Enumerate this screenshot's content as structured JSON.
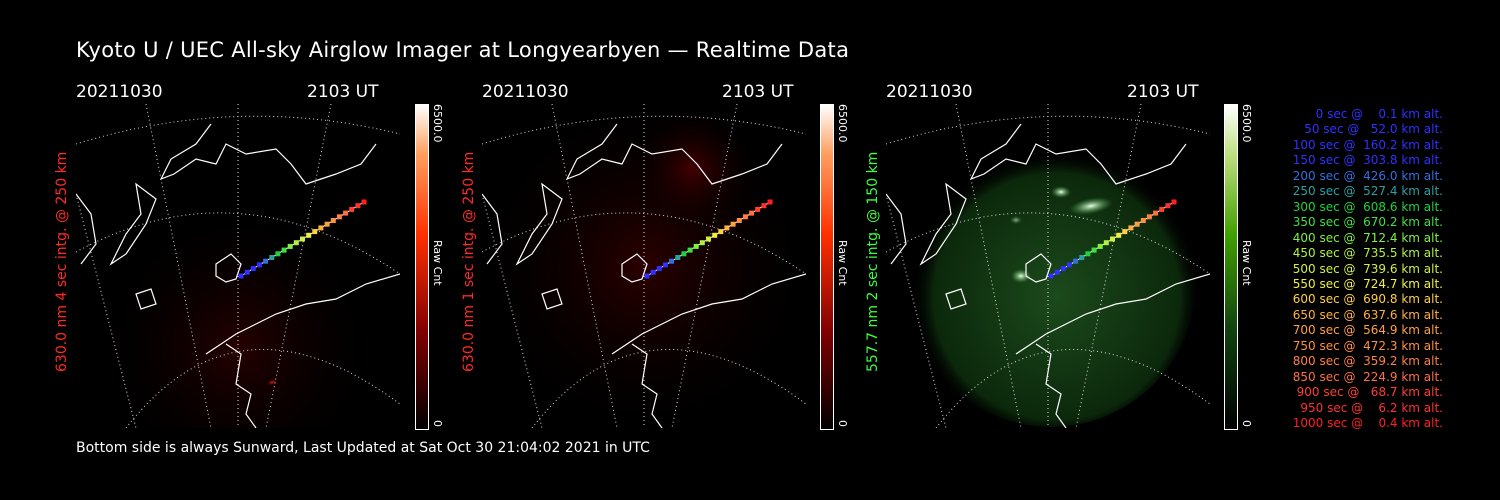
{
  "title": "Kyoto U / UEC All-sky Airglow Imager at Longyearbyen — Realtime Data",
  "footer": "Bottom side is always Sunward, Last Updated at Sat Oct 30 21:04:02 2021 in UTC",
  "panels": [
    {
      "date": "20211030",
      "time": "2103 UT",
      "ylabel": "630.0 nm 4 sec intg. @ 250 km",
      "cb_max": "6500.0",
      "cb_unit": "Raw Cnt",
      "cb_min": "0",
      "color": "#ff2a2a"
    },
    {
      "date": "20211030",
      "time": "2103 UT",
      "ylabel": "630.0 nm 1 sec intg. @ 250 km",
      "cb_max": "6500.0",
      "cb_unit": "Raw Cnt",
      "cb_min": "0",
      "color": "#ff2a2a"
    },
    {
      "date": "20211030",
      "time": "2103 UT",
      "ylabel": "557.7 nm 2 sec intg. @ 150 km",
      "cb_max": "6500.0",
      "cb_unit": "Raw Cnt",
      "cb_min": "0",
      "color": "#3cff3c"
    }
  ],
  "legend": [
    {
      "text": "   0 sec @    0.1 km alt.",
      "color": "#3030ff"
    },
    {
      "text": "  50 sec @   52.0 km alt.",
      "color": "#3030ff"
    },
    {
      "text": " 100 sec @  160.2 km alt.",
      "color": "#3030ff"
    },
    {
      "text": " 150 sec @  303.8 km alt.",
      "color": "#3030ff"
    },
    {
      "text": " 200 sec @  426.0 km alt.",
      "color": "#3070e0"
    },
    {
      "text": " 250 sec @  527.4 km alt.",
      "color": "#2aa0a0"
    },
    {
      "text": " 300 sec @  608.6 km alt.",
      "color": "#20d040"
    },
    {
      "text": " 350 sec @  670.2 km alt.",
      "color": "#40e040"
    },
    {
      "text": " 400 sec @  712.4 km alt.",
      "color": "#80f040"
    },
    {
      "text": " 450 sec @  735.5 km alt.",
      "color": "#b0f040"
    },
    {
      "text": " 500 sec @  739.6 km alt.",
      "color": "#d0f040"
    },
    {
      "text": " 550 sec @  724.7 km alt.",
      "color": "#f0f040"
    },
    {
      "text": " 600 sec @  690.8 km alt.",
      "color": "#ffd040"
    },
    {
      "text": " 650 sec @  637.6 km alt.",
      "color": "#ffb040"
    },
    {
      "text": " 700 sec @  564.9 km alt.",
      "color": "#ffa040"
    },
    {
      "text": " 750 sec @  472.3 km alt.",
      "color": "#ff9040"
    },
    {
      "text": " 800 sec @  359.2 km alt.",
      "color": "#ff8040"
    },
    {
      "text": " 850 sec @  224.9 km alt.",
      "color": "#ff7040"
    },
    {
      "text": " 900 sec @   68.7 km alt.",
      "color": "#ff4030"
    },
    {
      "text": " 950 sec @    6.2 km alt.",
      "color": "#ff3030"
    },
    {
      "text": "1000 sec @    0.4 km alt.",
      "color": "#ff2020"
    }
  ]
}
